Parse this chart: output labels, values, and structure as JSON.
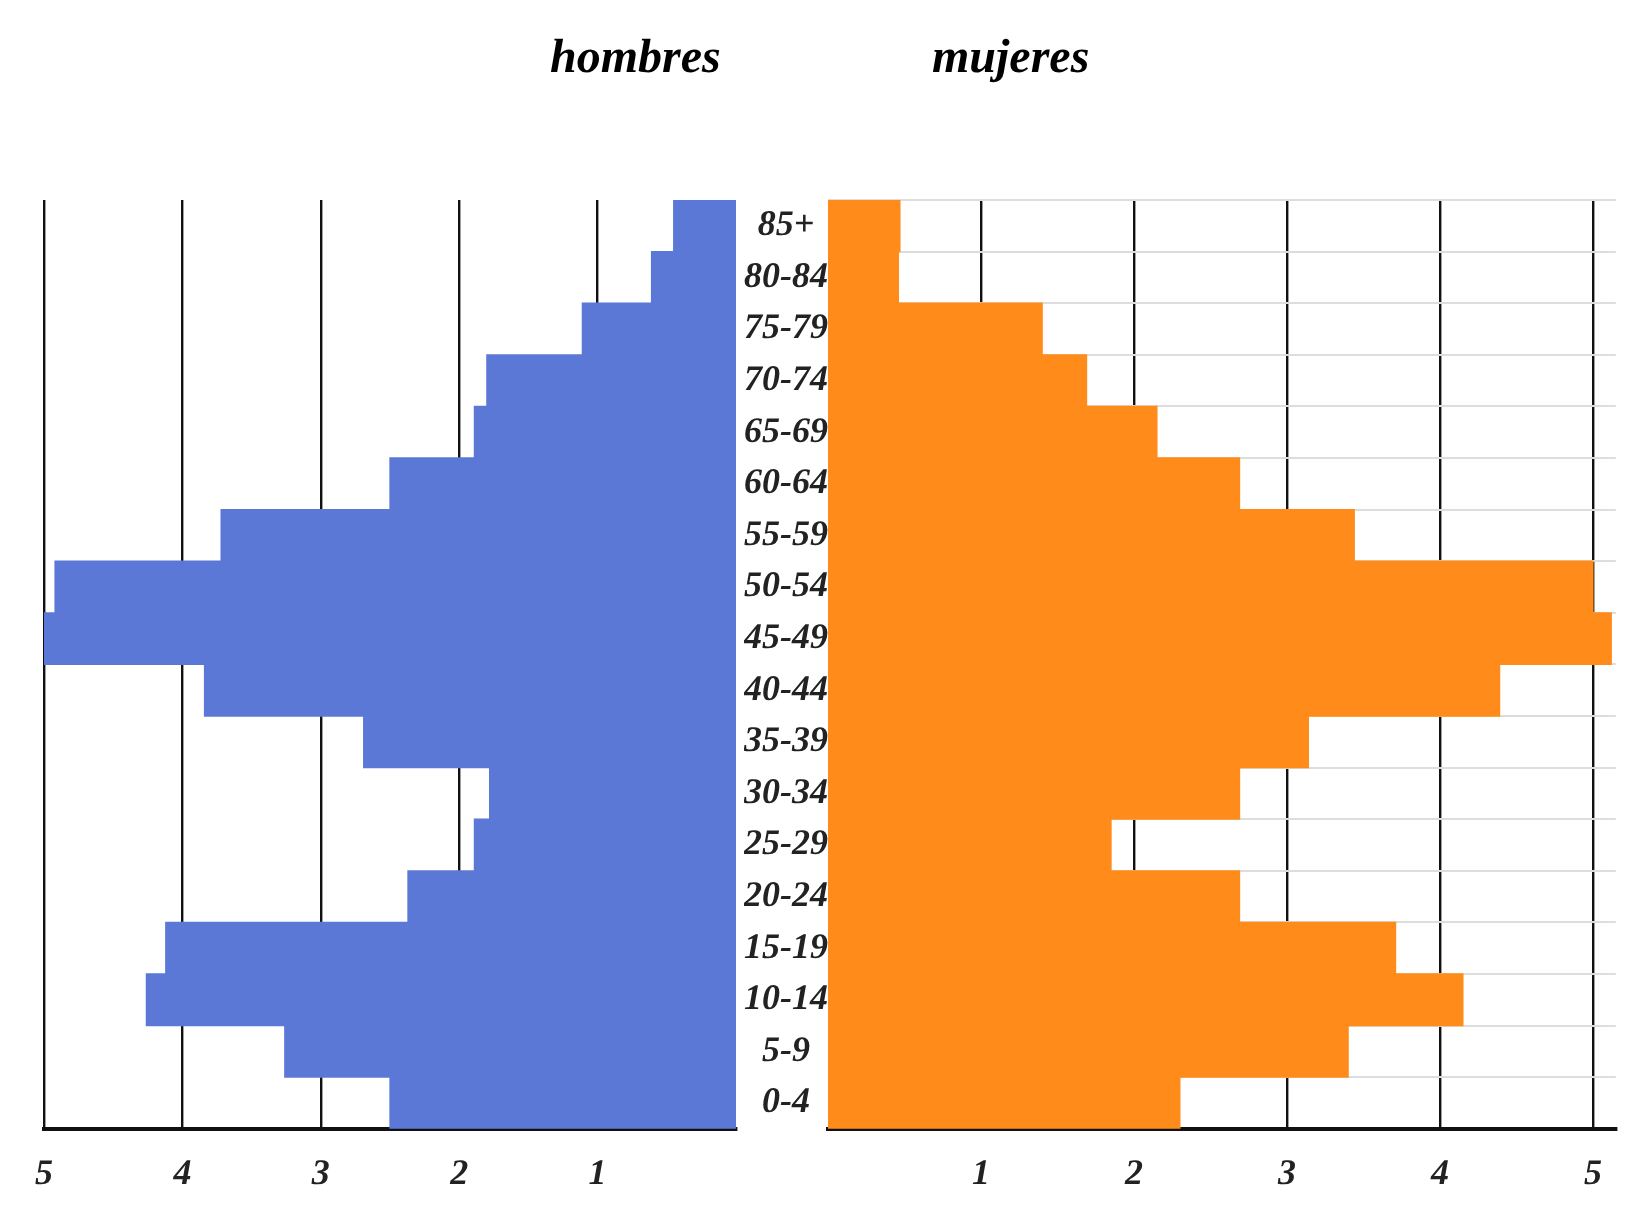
{
  "chart_data": [
    {
      "type": "bar",
      "orientation": "horizontal",
      "title": "hombres",
      "categories": [
        null,
        null,
        null,
        null,
        null,
        null,
        null,
        null,
        null,
        null,
        null,
        null,
        null,
        null,
        null,
        null,
        null,
        null
      ],
      "values": [
        0.45,
        0.61,
        1.11,
        1.8,
        1.89,
        2.5,
        3.72,
        4.92,
        5.0,
        3.84,
        2.69,
        1.78,
        1.89,
        2.37,
        4.12,
        4.26,
        3.26,
        2.5
      ],
      "color": "#5b78d6",
      "xlim": [
        5,
        0
      ],
      "xticks": [
        5,
        4,
        3,
        2,
        1
      ],
      "grid": true,
      "tick_labels": "x"
    },
    {
      "type": "bar",
      "orientation": "horizontal",
      "title": "mujeres",
      "categories": [
        "85+",
        "80-84",
        "75-79",
        "70-74",
        "65-69",
        "60-64",
        "55-59",
        "50-54",
        "45-49",
        "40-44",
        "35-39",
        "30-34",
        "25-29",
        "20-24",
        "15-19",
        "10-14",
        "5-9",
        "0-4"
      ],
      "values": [
        0.47,
        0.46,
        1.4,
        1.69,
        2.15,
        2.69,
        3.44,
        5.0,
        5.12,
        4.39,
        3.14,
        2.69,
        1.85,
        2.69,
        3.71,
        4.15,
        3.4,
        2.3
      ],
      "color": "#ff8c1a",
      "xlim": [
        0,
        5.15
      ],
      "xticks": [
        1,
        2,
        3,
        4,
        5
      ],
      "grid": true
    }
  ]
}
